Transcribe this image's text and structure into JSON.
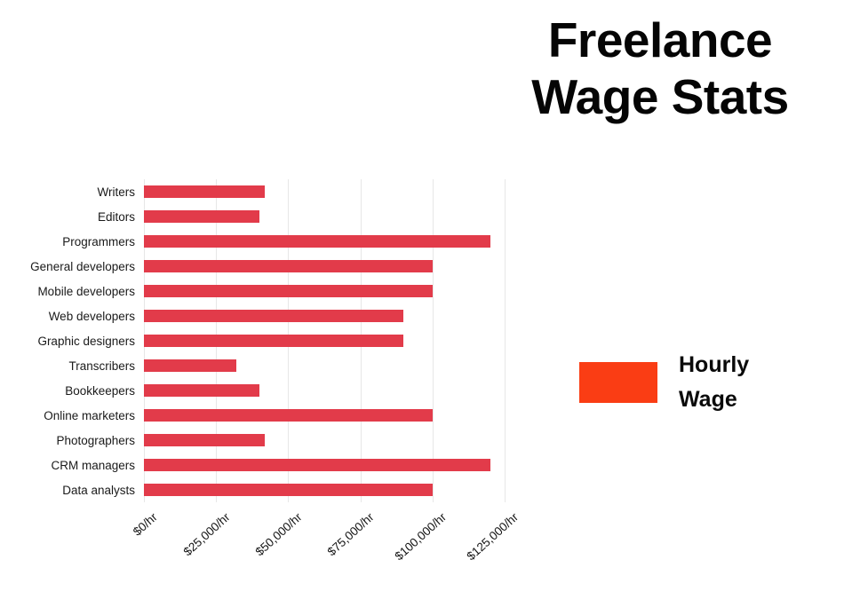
{
  "title": "Freelance Wage Stats",
  "legend": {
    "label": "Hourly Wage",
    "swatch_color": "#fa3d14"
  },
  "chart_data": {
    "type": "bar",
    "orientation": "horizontal",
    "title": "Freelance Wage Stats",
    "categories": [
      "Writers",
      "Editors",
      "Programmers",
      "General developers",
      "Mobile developers",
      "Web developers",
      "Graphic designers",
      "Transcribers",
      "Bookkeepers",
      "Online marketers",
      "Photographers",
      "CRM managers",
      "Data analysts"
    ],
    "series": [
      {
        "name": "Hourly Wage",
        "color": "#e23b4a",
        "values": [
          42000,
          40000,
          120000,
          100000,
          100000,
          90000,
          90000,
          32000,
          40000,
          100000,
          42000,
          120000,
          100000
        ]
      }
    ],
    "x_tick_labels": [
      "$0/hr",
      "$25,000/hr",
      "$50,000/hr",
      "$75,000/hr",
      "$100,000/hr",
      "$125,000/hr"
    ],
    "x_tick_values": [
      0,
      25000,
      50000,
      75000,
      100000,
      125000
    ],
    "xlim": [
      0,
      128700
    ],
    "grid": true,
    "gridline_color": "#e7e7e7",
    "legend_position": "right"
  }
}
